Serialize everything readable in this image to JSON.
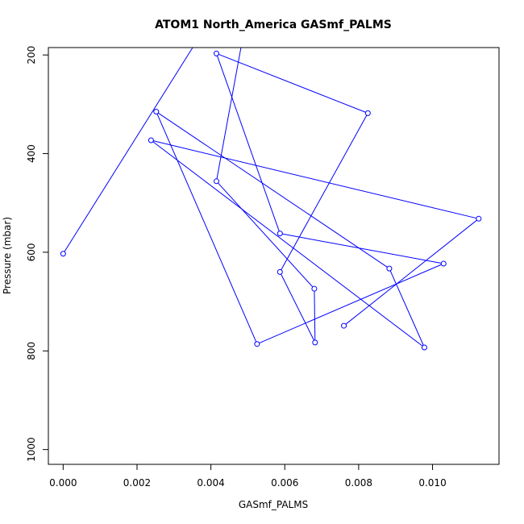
{
  "chart_data": {
    "type": "line",
    "title": "ATOM1 North_America GASmf_PALMS",
    "xlabel": "GASmf_PALMS",
    "ylabel": "Pressure (mbar)",
    "xlim": [
      -0.0004,
      0.0118
    ],
    "ylim": [
      1030,
      185
    ],
    "y_reversed": true,
    "x_ticks": [
      "0.000",
      "0.002",
      "0.004",
      "0.006",
      "0.008",
      "0.010"
    ],
    "x_tick_values": [
      0,
      0.002,
      0.004,
      0.006,
      0.008,
      0.01
    ],
    "y_ticks": [
      "200",
      "400",
      "600",
      "800",
      "1000"
    ],
    "y_tick_values": [
      200,
      400,
      600,
      800,
      1000
    ],
    "series_color": "#0000ff",
    "series": [
      {
        "markers": "open-circle",
        "points": [
          {
            "x": 0.0,
            "y": 603
          },
          {
            "x": 0.0038,
            "y": 150
          },
          {
            "x": 0.0049,
            "y": 150
          },
          {
            "x": 0.00415,
            "y": 456
          },
          {
            "x": 0.0068,
            "y": 674
          },
          {
            "x": 0.00682,
            "y": 783
          },
          {
            "x": 0.00587,
            "y": 640
          },
          {
            "x": 0.00825,
            "y": 318
          },
          {
            "x": 0.00415,
            "y": 197
          },
          {
            "x": 0.00587,
            "y": 562
          },
          {
            "x": 0.0103,
            "y": 623
          },
          {
            "x": 0.00525,
            "y": 786
          },
          {
            "x": 0.00252,
            "y": 315
          },
          {
            "x": 0.00883,
            "y": 633
          },
          {
            "x": 0.00978,
            "y": 793
          },
          {
            "x": 0.00238,
            "y": 373
          },
          {
            "x": 0.01125,
            "y": 532
          },
          {
            "x": 0.0076,
            "y": 749
          }
        ]
      }
    ]
  }
}
